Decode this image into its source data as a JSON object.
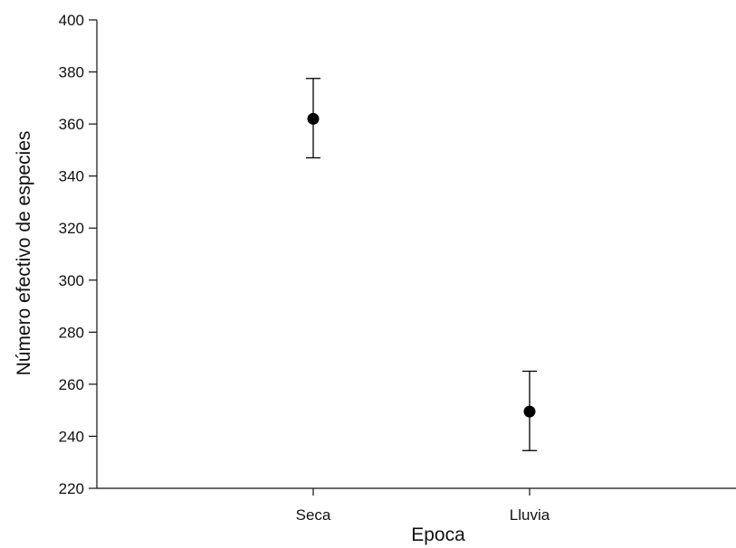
{
  "chart_data": {
    "type": "scatter",
    "title": "",
    "xlabel": "Epoca",
    "ylabel": "Número efectivo de especies",
    "categories": [
      "Seca",
      "Lluvia"
    ],
    "series": [
      {
        "values": [
          362,
          249.5
        ],
        "error_low": [
          347,
          234.5
        ],
        "error_high": [
          377.5,
          265
        ]
      }
    ],
    "ylim": [
      220,
      400
    ],
    "yticks": [
      220,
      240,
      260,
      280,
      300,
      320,
      340,
      360,
      380,
      400
    ],
    "grid": false,
    "legend": "none",
    "colors": {
      "marker": "#000000",
      "axis": "#111111"
    }
  }
}
